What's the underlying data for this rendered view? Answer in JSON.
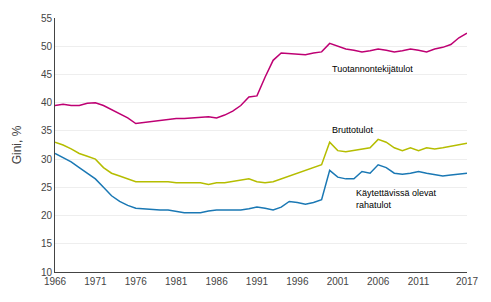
{
  "chart_data": {
    "type": "line",
    "ylabel": "Gini, %",
    "x": [
      1966,
      1967,
      1968,
      1969,
      1970,
      1971,
      1972,
      1973,
      1974,
      1975,
      1976,
      1977,
      1978,
      1979,
      1980,
      1981,
      1982,
      1983,
      1984,
      1985,
      1986,
      1987,
      1988,
      1989,
      1990,
      1991,
      1992,
      1993,
      1994,
      1995,
      1996,
      1997,
      1998,
      1999,
      2000,
      2001,
      2002,
      2003,
      2004,
      2005,
      2006,
      2007,
      2008,
      2009,
      2010,
      2011,
      2012,
      2013,
      2014,
      2015,
      2016,
      2017
    ],
    "series": [
      {
        "color": "#be0073",
        "values": [
          39.5,
          39.7,
          39.5,
          39.5,
          39.9,
          40.0,
          39.5,
          38.8,
          38.0,
          37.3,
          36.3,
          36.5,
          36.7,
          36.8,
          37.0,
          37.2,
          37.2,
          37.3,
          37.5,
          37.5,
          37.3,
          37.8,
          38.5,
          39.5,
          41.0,
          41.2,
          44.5,
          47.5,
          48.8,
          48.7,
          48.5,
          48.5,
          48.8,
          49.0,
          50.5,
          50.0,
          49.5,
          49.3,
          49.0,
          49.2,
          49.5,
          49.3,
          49.0,
          49.2,
          49.5,
          49.3,
          49.0,
          49.5,
          49.8,
          50.3,
          51.5,
          52.3
        ]
      },
      {
        "color": "#b5bd00",
        "values": [
          33.0,
          32.5,
          31.8,
          31.0,
          30.5,
          30.0,
          28.5,
          27.5,
          27.0,
          26.5,
          26.0,
          26.0,
          26.0,
          26.0,
          26.0,
          25.8,
          25.8,
          25.7,
          25.8,
          25.5,
          25.8,
          25.8,
          26.0,
          26.2,
          26.5,
          26.0,
          25.8,
          26.0,
          26.5,
          27.0,
          27.5,
          28.0,
          28.5,
          29.0,
          33.0,
          31.5,
          31.3,
          31.5,
          31.8,
          32.0,
          33.5,
          33.0,
          32.0,
          31.5,
          32.0,
          31.5,
          32.0,
          31.8,
          32.0,
          32.3,
          32.5,
          32.8
        ]
      },
      {
        "color": "#1a78b4",
        "values": [
          31.0,
          30.3,
          29.5,
          28.5,
          27.5,
          26.5,
          25.0,
          23.5,
          22.5,
          21.8,
          21.3,
          21.2,
          21.0,
          21.0,
          21.0,
          20.7,
          20.5,
          20.5,
          20.5,
          20.8,
          21.0,
          21.0,
          21.0,
          21.0,
          21.2,
          21.5,
          21.3,
          21.0,
          21.5,
          22.5,
          22.3,
          22.0,
          22.3,
          22.8,
          28.0,
          26.8,
          26.5,
          26.5,
          27.8,
          27.5,
          29.0,
          28.5,
          27.5,
          27.3,
          27.5,
          27.8,
          27.5,
          27.3,
          27.0,
          27.2,
          27.3,
          27.5
        ]
      }
    ],
    "annotations": [
      {
        "text": "Tuotannontekijätulot",
        "x": 2000,
        "y": 46.0
      },
      {
        "text": "Bruttotulot",
        "x": 2000,
        "y": 35.2
      },
      {
        "text": "Käytettävissä olevat\nrahatulot",
        "x": 2003,
        "y": 23.0
      }
    ],
    "xlim": [
      1966,
      2017
    ],
    "xticks": [
      1966,
      1971,
      1976,
      1981,
      1986,
      1991,
      1996,
      2001,
      2006,
      2011,
      2017
    ],
    "ylim": [
      10,
      55
    ],
    "yticks": [
      10,
      15,
      20,
      25,
      30,
      35,
      40,
      45,
      50,
      55
    ],
    "grid": "y"
  }
}
